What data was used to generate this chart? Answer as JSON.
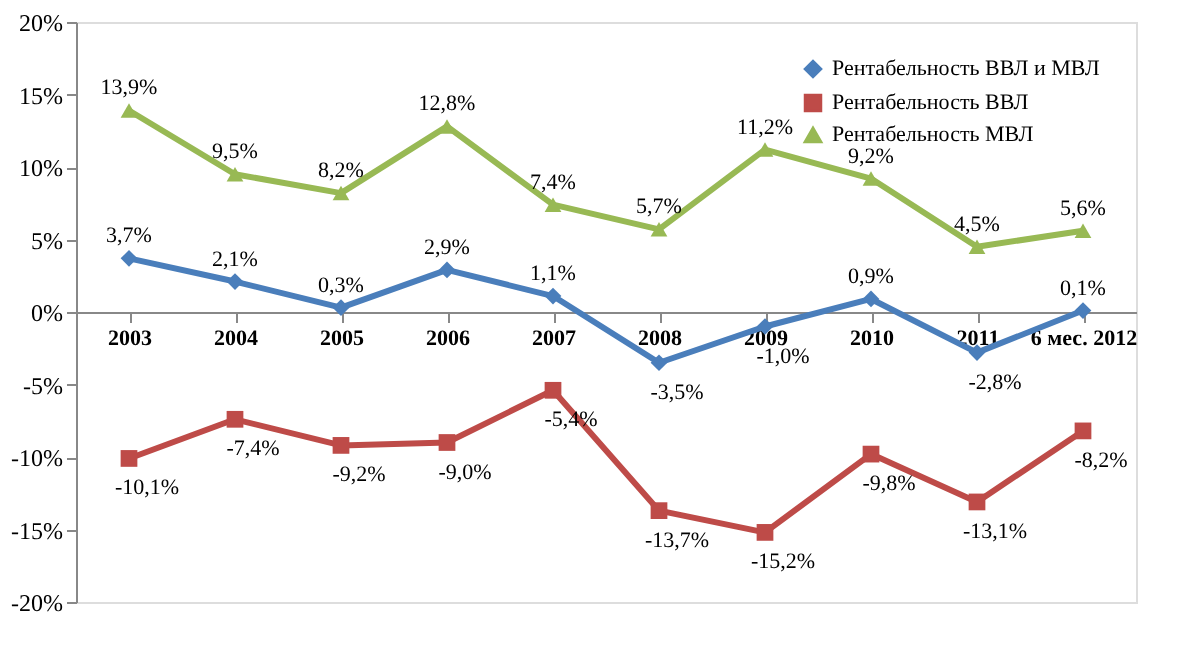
{
  "chart_data": {
    "type": "line",
    "categories": [
      "2003",
      "2004",
      "2005",
      "2006",
      "2007",
      "2008",
      "2009",
      "2010",
      "2011",
      "6 мес. 2012"
    ],
    "series": [
      {
        "name": "Рентабельность ВВЛ и МВЛ",
        "color": "#4a7ebb",
        "marker": "diamond",
        "values": [
          3.7,
          2.1,
          0.3,
          2.9,
          1.1,
          -3.5,
          -1.0,
          0.9,
          -2.8,
          0.1
        ],
        "value_labels": [
          "3,7%",
          "2,1%",
          "0,3%",
          "2,9%",
          "1,1%",
          "-3,5%",
          "-1,0%",
          "0,9%",
          "-2,8%",
          "0,1%"
        ]
      },
      {
        "name": "Рентабельность ВВЛ",
        "color": "#be4b48",
        "marker": "square",
        "values": [
          -10.1,
          -7.4,
          -9.2,
          -9.0,
          -5.4,
          -13.7,
          -15.2,
          -9.8,
          -13.1,
          -8.2
        ],
        "value_labels": [
          "-10,1%",
          "-7,4%",
          "-9,2%",
          "-9,0%",
          "-5,4%",
          "-13,7%",
          "-15,2%",
          "-9,8%",
          "-13,1%",
          "-8,2%"
        ]
      },
      {
        "name": "Рентабельность МВЛ",
        "color": "#98b954",
        "marker": "triangle",
        "values": [
          13.9,
          9.5,
          8.2,
          12.8,
          7.4,
          5.7,
          11.2,
          9.2,
          4.5,
          5.6
        ],
        "value_labels": [
          "13,9%",
          "9,5%",
          "8,2%",
          "12,8%",
          "7,4%",
          "5,7%",
          "11,2%",
          "9,2%",
          "4,5%",
          "5,6%"
        ]
      }
    ],
    "ylim": [
      -20,
      20
    ],
    "yticks": [
      {
        "value": -20,
        "label": "-20%"
      },
      {
        "value": -15,
        "label": "-15%"
      },
      {
        "value": -10,
        "label": "-10%"
      },
      {
        "value": -5,
        "label": "-5%"
      },
      {
        "value": 0,
        "label": "0%"
      },
      {
        "value": 5,
        "label": "5%"
      },
      {
        "value": 10,
        "label": "10%"
      },
      {
        "value": 15,
        "label": "15%"
      },
      {
        "value": 20,
        "label": "20%"
      }
    ],
    "grid": false,
    "legend": "top right",
    "line_style": "solid"
  }
}
